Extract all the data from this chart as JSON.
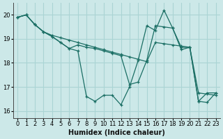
{
  "bg_color": "#cce8e8",
  "grid_color": "#aad4d4",
  "line_color": "#1a6e64",
  "xlabel": "Humidex (Indice chaleur)",
  "xlim": [
    -0.5,
    23.5
  ],
  "ylim": [
    15.7,
    20.5
  ],
  "xticks": [
    0,
    1,
    2,
    3,
    4,
    5,
    6,
    7,
    8,
    9,
    10,
    11,
    12,
    13,
    14,
    15,
    16,
    17,
    18,
    19,
    20,
    21,
    22,
    23
  ],
  "yticks": [
    16,
    17,
    18,
    19,
    20
  ],
  "series": [
    [
      19.9,
      20.0,
      19.6,
      19.3,
      19.15,
      19.05,
      18.95,
      18.85,
      18.75,
      18.65,
      18.55,
      18.45,
      18.35,
      18.25,
      18.15,
      18.05,
      18.85,
      18.8,
      18.75,
      18.7,
      18.65,
      16.75,
      16.7,
      16.65
    ],
    [
      19.9,
      20.0,
      19.6,
      19.3,
      19.1,
      18.85,
      18.6,
      18.5,
      16.6,
      16.4,
      16.65,
      16.65,
      16.25,
      17.0,
      18.1,
      19.55,
      19.35,
      20.2,
      19.45,
      18.55,
      18.65,
      16.4,
      16.35,
      16.75
    ],
    [
      19.9,
      20.0,
      19.6,
      19.3,
      19.1,
      18.85,
      18.6,
      18.75,
      18.65,
      18.6,
      18.5,
      18.4,
      18.3,
      17.1,
      17.2,
      18.1,
      19.55,
      19.5,
      19.45,
      18.65,
      18.65,
      16.4,
      16.75,
      16.75
    ]
  ]
}
